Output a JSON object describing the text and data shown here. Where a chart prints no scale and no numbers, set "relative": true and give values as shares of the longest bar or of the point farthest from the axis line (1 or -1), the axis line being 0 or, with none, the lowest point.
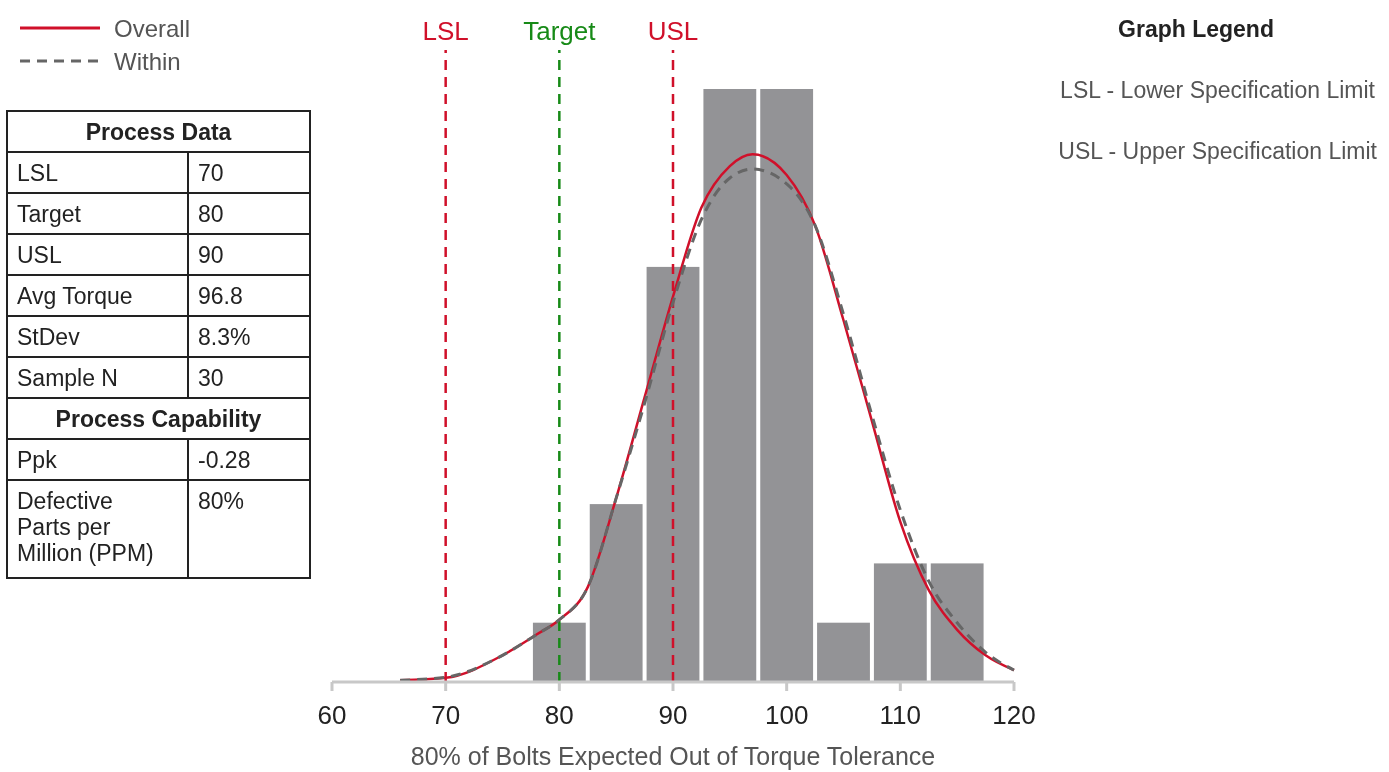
{
  "chart_data": {
    "type": "histogram",
    "xlabel": "80% of Bolts Expected Out of Torque Tolerance",
    "relative": true,
    "bins": [
      77.5,
      82.5,
      87.5,
      92.5,
      97.5,
      102.5,
      107.5,
      112.5,
      117.5
    ],
    "values": [
      0.1,
      0.3,
      0.7,
      1,
      1,
      0.1,
      0.2,
      0.2
    ],
    "color": "#939396",
    "series": [
      {
        "name": "Overall",
        "type": "line",
        "color": "#d0102a",
        "line_style": "solid",
        "x": [
          66,
          70,
          75,
          78,
          80,
          82.5,
          85,
          87.5,
          90,
          92.5,
          95,
          97,
          100,
          102.5,
          105,
          107.5,
          110,
          112.5,
          115,
          117.5,
          120
        ],
        "values": [
          0.003,
          0.007,
          0.045,
          0.08,
          0.105,
          0.16,
          0.31,
          0.48,
          0.65,
          0.8,
          0.87,
          0.89,
          0.855,
          0.77,
          0.61,
          0.44,
          0.27,
          0.155,
          0.088,
          0.045,
          0.02
        ]
      },
      {
        "name": "Within",
        "type": "line",
        "color": "#666666",
        "line_style": "dashed",
        "x": [
          66,
          70,
          75,
          78,
          80,
          82.5,
          85,
          87.5,
          90,
          92.5,
          95,
          97,
          100,
          102.5,
          105,
          107.5,
          110,
          112.5,
          115,
          117.5,
          120
        ],
        "values": [
          0.003,
          0.008,
          0.045,
          0.08,
          0.105,
          0.16,
          0.31,
          0.47,
          0.64,
          0.78,
          0.85,
          0.865,
          0.84,
          0.77,
          0.62,
          0.45,
          0.29,
          0.17,
          0.1,
          0.05,
          0.02
        ]
      }
    ],
    "xlim": [
      60,
      120
    ],
    "xticks": [
      60,
      70,
      80,
      90,
      100,
      110,
      120
    ],
    "ref_lines": [
      {
        "axis": "x",
        "value": 70,
        "label": "LSL",
        "color": "#d0102a",
        "line_style": "dashed"
      },
      {
        "axis": "x",
        "value": 80,
        "label": "Target",
        "color": "#178a17",
        "line_style": "dashed"
      },
      {
        "axis": "x",
        "value": 90,
        "label": "USL",
        "color": "#d0102a",
        "line_style": "dashed"
      }
    ],
    "legend": "top left",
    "annotations": [
      "Process Data",
      "LSL",
      "70",
      "Target",
      "80",
      "USL",
      "90",
      "Avg Torque",
      "96.8",
      "StDev",
      "8.3%",
      "Sample N",
      "30",
      "Process Capability",
      "Ppk",
      "-0.28",
      "Defective Parts per Million (PPM)",
      "80%",
      "Graph Legend",
      "LSL - Lower Specification Limit",
      "USL - Upper Specification Limit"
    ]
  }
}
